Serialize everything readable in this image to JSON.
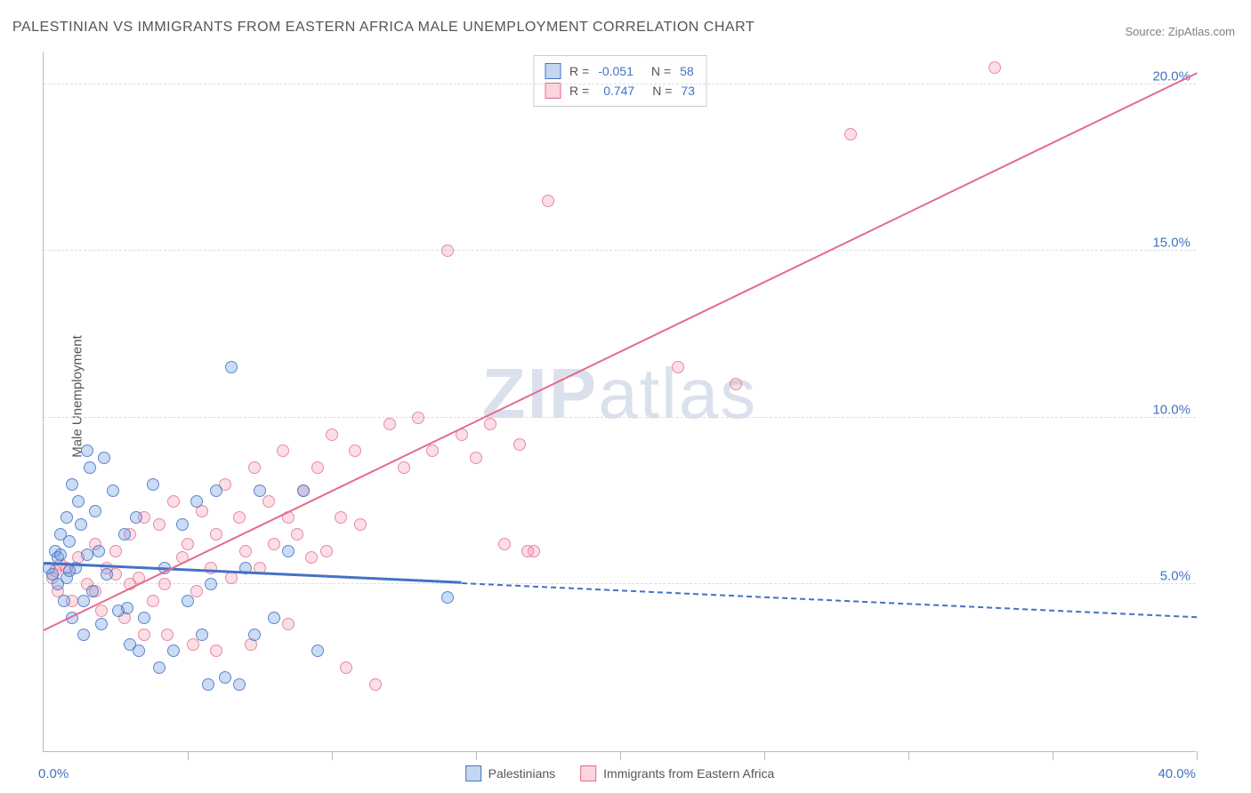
{
  "title": "PALESTINIAN VS IMMIGRANTS FROM EASTERN AFRICA MALE UNEMPLOYMENT CORRELATION CHART",
  "source": "Source: ZipAtlas.com",
  "watermark": "ZIPatlas",
  "y_axis_title": "Male Unemployment",
  "chart": {
    "type": "scatter",
    "background_color": "#ffffff",
    "grid_color": "#dddddd",
    "axis_color": "#bbbbbb",
    "xlim": [
      0,
      40
    ],
    "ylim": [
      0,
      21
    ],
    "x_ticks": [
      0,
      5,
      10,
      15,
      20,
      25,
      30,
      35,
      40
    ],
    "x_tick_labels_shown": [
      {
        "pos": 0,
        "label": "0.0%"
      },
      {
        "pos": 40,
        "label": "40.0%"
      }
    ],
    "y_grid": [
      5,
      10,
      15,
      20
    ],
    "y_tick_labels": [
      "5.0%",
      "10.0%",
      "15.0%",
      "20.0%"
    ],
    "label_color": "#4472c4",
    "label_fontsize": 15,
    "title_color": "#555555",
    "title_fontsize": 16
  },
  "series": {
    "blue": {
      "name": "Palestinians",
      "marker_fill": "rgba(106,156,220,0.35)",
      "marker_stroke": "#4472c4",
      "marker_radius": 7,
      "R": "-0.051",
      "N": "58",
      "trend": {
        "x1": 0,
        "y1": 5.6,
        "x2": 40,
        "y2": 4.0,
        "solid_until_x": 14.5,
        "color": "#4472c4",
        "width": 2.5
      },
      "points": [
        [
          0.2,
          5.5
        ],
        [
          0.3,
          5.3
        ],
        [
          0.4,
          6.0
        ],
        [
          0.5,
          5.0
        ],
        [
          0.5,
          5.8
        ],
        [
          0.6,
          6.5
        ],
        [
          0.7,
          4.5
        ],
        [
          0.8,
          7.0
        ],
        [
          0.8,
          5.2
        ],
        [
          0.9,
          6.3
        ],
        [
          1.0,
          4.0
        ],
        [
          1.0,
          8.0
        ],
        [
          1.1,
          5.5
        ],
        [
          1.2,
          7.5
        ],
        [
          1.3,
          6.8
        ],
        [
          1.4,
          3.5
        ],
        [
          1.5,
          9.0
        ],
        [
          1.5,
          5.9
        ],
        [
          1.6,
          8.5
        ],
        [
          1.7,
          4.8
        ],
        [
          1.8,
          7.2
        ],
        [
          1.9,
          6.0
        ],
        [
          2.0,
          3.8
        ],
        [
          2.1,
          8.8
        ],
        [
          2.2,
          5.3
        ],
        [
          2.4,
          7.8
        ],
        [
          2.6,
          4.2
        ],
        [
          2.8,
          6.5
        ],
        [
          3.0,
          3.2
        ],
        [
          3.2,
          7.0
        ],
        [
          3.5,
          4.0
        ],
        [
          3.8,
          8.0
        ],
        [
          4.0,
          2.5
        ],
        [
          4.2,
          5.5
        ],
        [
          4.5,
          3.0
        ],
        [
          4.8,
          6.8
        ],
        [
          5.0,
          4.5
        ],
        [
          5.3,
          7.5
        ],
        [
          5.5,
          3.5
        ],
        [
          5.8,
          5.0
        ],
        [
          6.0,
          7.8
        ],
        [
          6.3,
          2.2
        ],
        [
          6.5,
          11.5
        ],
        [
          6.8,
          2.0
        ],
        [
          7.0,
          5.5
        ],
        [
          7.3,
          3.5
        ],
        [
          7.5,
          7.8
        ],
        [
          8.0,
          4.0
        ],
        [
          8.5,
          6.0
        ],
        [
          9.0,
          7.8
        ],
        [
          9.5,
          3.0
        ],
        [
          5.7,
          2.0
        ],
        [
          3.3,
          3.0
        ],
        [
          2.9,
          4.3
        ],
        [
          1.4,
          4.5
        ],
        [
          0.6,
          5.9
        ],
        [
          0.9,
          5.4
        ],
        [
          14.0,
          4.6
        ]
      ]
    },
    "pink": {
      "name": "Immigrants from Eastern Africa",
      "marker_fill": "rgba(240,150,170,0.3)",
      "marker_stroke": "#e56a8f",
      "marker_radius": 7,
      "R": "0.747",
      "N": "73",
      "trend": {
        "x1": 0,
        "y1": 3.6,
        "x2": 40,
        "y2": 20.3,
        "solid_until_x": 40,
        "color": "#e56a8f",
        "width": 2
      },
      "points": [
        [
          0.3,
          5.2
        ],
        [
          0.5,
          4.8
        ],
        [
          0.8,
          5.5
        ],
        [
          1.0,
          4.5
        ],
        [
          1.2,
          5.8
        ],
        [
          1.5,
          5.0
        ],
        [
          1.8,
          6.2
        ],
        [
          2.0,
          4.2
        ],
        [
          2.2,
          5.5
        ],
        [
          2.5,
          6.0
        ],
        [
          2.8,
          4.0
        ],
        [
          3.0,
          6.5
        ],
        [
          3.3,
          5.2
        ],
        [
          3.5,
          7.0
        ],
        [
          3.8,
          4.5
        ],
        [
          4.0,
          6.8
        ],
        [
          4.2,
          5.0
        ],
        [
          4.5,
          7.5
        ],
        [
          4.8,
          5.8
        ],
        [
          5.0,
          6.2
        ],
        [
          5.3,
          4.8
        ],
        [
          5.5,
          7.2
        ],
        [
          5.8,
          5.5
        ],
        [
          6.0,
          6.5
        ],
        [
          6.3,
          8.0
        ],
        [
          6.5,
          5.2
        ],
        [
          6.8,
          7.0
        ],
        [
          7.0,
          6.0
        ],
        [
          7.3,
          8.5
        ],
        [
          7.5,
          5.5
        ],
        [
          7.8,
          7.5
        ],
        [
          8.0,
          6.2
        ],
        [
          8.3,
          9.0
        ],
        [
          8.5,
          7.0
        ],
        [
          8.8,
          6.5
        ],
        [
          9.0,
          7.8
        ],
        [
          9.3,
          5.8
        ],
        [
          9.5,
          8.5
        ],
        [
          9.8,
          6.0
        ],
        [
          10.0,
          9.5
        ],
        [
          10.3,
          7.0
        ],
        [
          10.5,
          2.5
        ],
        [
          10.8,
          9.0
        ],
        [
          11.0,
          6.8
        ],
        [
          11.5,
          2.0
        ],
        [
          12.0,
          9.8
        ],
        [
          12.5,
          8.5
        ],
        [
          13.0,
          10.0
        ],
        [
          13.5,
          9.0
        ],
        [
          14.0,
          15.0
        ],
        [
          14.5,
          9.5
        ],
        [
          15.0,
          8.8
        ],
        [
          15.5,
          9.8
        ],
        [
          16.0,
          6.2
        ],
        [
          16.5,
          9.2
        ],
        [
          17.0,
          6.0
        ],
        [
          17.5,
          16.5
        ],
        [
          22.0,
          11.5
        ],
        [
          24.0,
          11.0
        ],
        [
          28.0,
          18.5
        ],
        [
          33.0,
          20.5
        ],
        [
          5.2,
          3.2
        ],
        [
          6.0,
          3.0
        ],
        [
          7.2,
          3.2
        ],
        [
          8.5,
          3.8
        ],
        [
          4.3,
          3.5
        ],
        [
          3.5,
          3.5
        ],
        [
          2.5,
          5.3
        ],
        [
          1.8,
          4.8
        ],
        [
          3.0,
          5.0
        ],
        [
          0.6,
          5.6
        ],
        [
          0.4,
          5.4
        ],
        [
          16.8,
          6.0
        ]
      ]
    }
  },
  "legend_bottom": [
    {
      "swatch": "blue",
      "label": "Palestinians"
    },
    {
      "swatch": "pink",
      "label": "Immigrants from Eastern Africa"
    }
  ]
}
